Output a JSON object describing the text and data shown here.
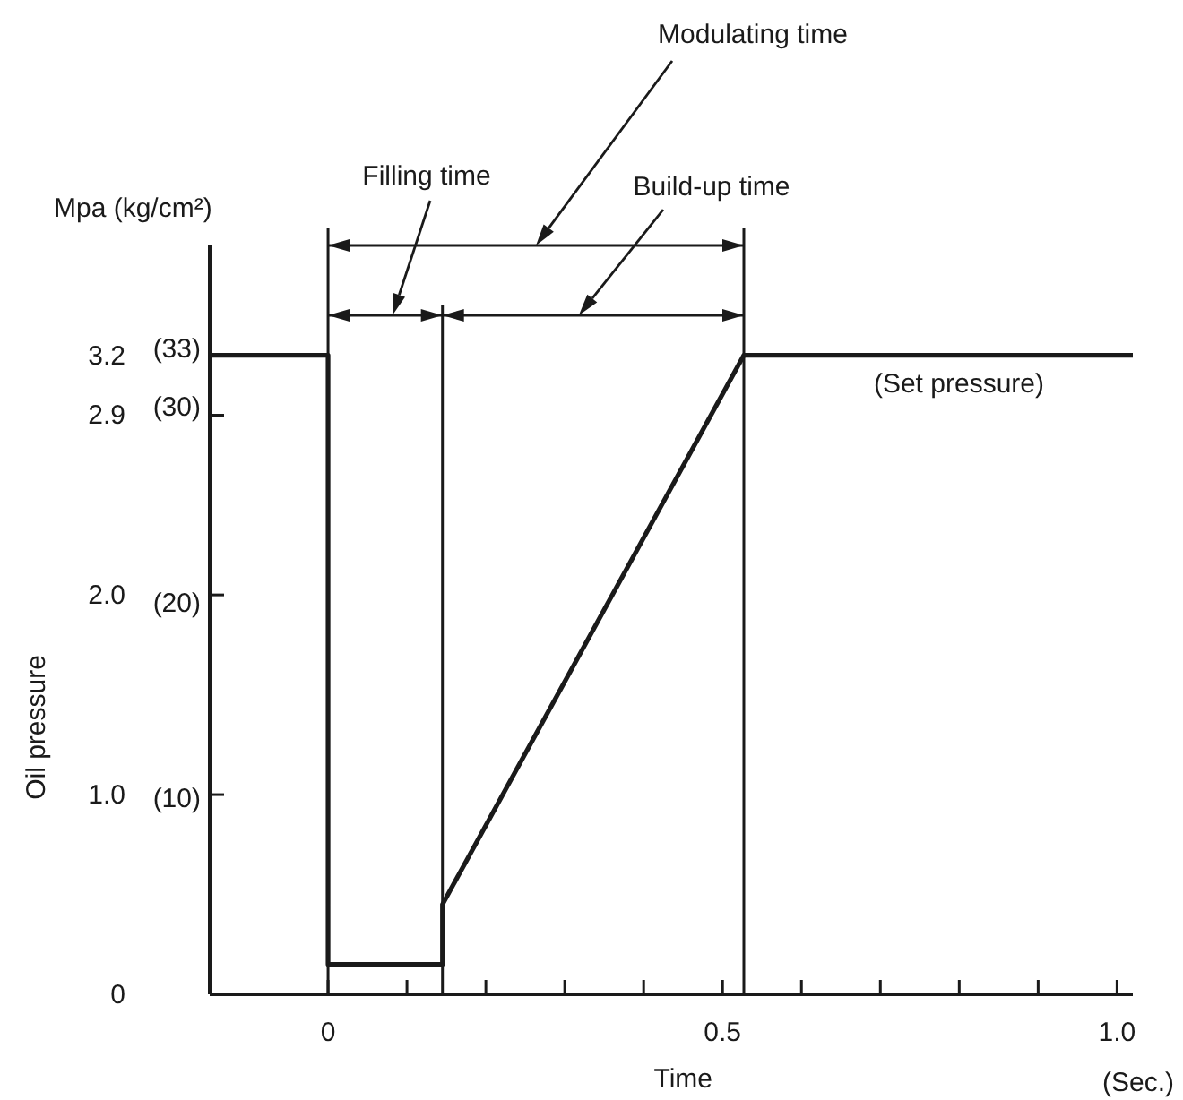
{
  "chart_data": {
    "type": "line",
    "xlabel": "Time",
    "ylabel": "Oil pressure",
    "annotations": [
      "Modulating time",
      "Filling time",
      "Build-up time",
      "(Set pressure)",
      "Mpa (kg/cm²)",
      "(Sec.)"
    ],
    "ref_lines": [
      {
        "axis": "x",
        "value": 0,
        "color": "#1a1a1a"
      },
      {
        "axis": "x",
        "value": 0.145,
        "color": "#1a1a1a"
      },
      {
        "axis": "x",
        "value": 0.527,
        "color": "#1a1a1a"
      }
    ],
    "xlim": [
      -0.15,
      1.02
    ],
    "ylim": [
      0,
      3.75
    ],
    "xticks": [
      0,
      {
        "value": 0.1,
        "label": null
      },
      {
        "value": 0.2,
        "label": null
      },
      {
        "value": 0.3,
        "label": null
      },
      {
        "value": 0.4,
        "label": null
      },
      0.5,
      {
        "value": 0.6,
        "label": null
      },
      {
        "value": 0.7,
        "label": null
      },
      {
        "value": 0.8,
        "label": null
      },
      {
        "value": 0.9,
        "label": null
      },
      {
        "value": 1.0,
        "label": "1.0"
      }
    ],
    "yticks": [
      0,
      {
        "value": 1.0,
        "label": "1.0"
      },
      {
        "value": 2.0,
        "label": "2.0"
      },
      {
        "value": 2.9,
        "label": "2.9"
      },
      {
        "value": 3.2,
        "label": "3.2"
      }
    ],
    "y2lim": [
      0,
      38.25
    ],
    "y2ticks": [
      {
        "value": 10,
        "label": "(10)"
      },
      {
        "value": 20,
        "label": "(20)"
      },
      {
        "value": 30,
        "label": "(30)"
      },
      {
        "value": 33,
        "label": "(33)"
      }
    ],
    "grid": false,
    "marker": "none",
    "line_style": "solid",
    "series": [
      {
        "color": "#1a1a1a",
        "x": [
          -0.15,
          0,
          0,
          0.145,
          0.145,
          0.527,
          1.02
        ],
        "values": [
          3.2,
          3.2,
          0.15,
          0.15,
          0.45,
          3.2,
          3.2
        ]
      }
    ]
  }
}
